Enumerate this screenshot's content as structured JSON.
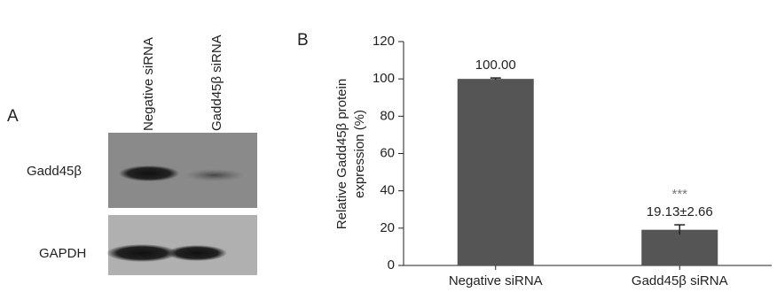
{
  "panel_a": {
    "label": "A",
    "lanes": [
      "Negative siRNA",
      "Gadd45β siRNA"
    ],
    "rows": [
      "Gadd45β",
      "GAPDH"
    ]
  },
  "chart_data": {
    "type": "bar",
    "label": "B",
    "ylabel": [
      "Relative Gadd45β protein",
      "expression (%)"
    ],
    "categories": [
      "Negative siRNA",
      "Gadd45β siRNA"
    ],
    "values": [
      100,
      19.13
    ],
    "errors": [
      0.5,
      2.66
    ],
    "value_labels": [
      "100.00",
      "19.13±2.66"
    ],
    "annotations": [
      null,
      "***"
    ],
    "color": "#555555",
    "ylim": [
      0,
      120
    ],
    "yticks": [
      0,
      20,
      40,
      60,
      80,
      100,
      120
    ]
  }
}
